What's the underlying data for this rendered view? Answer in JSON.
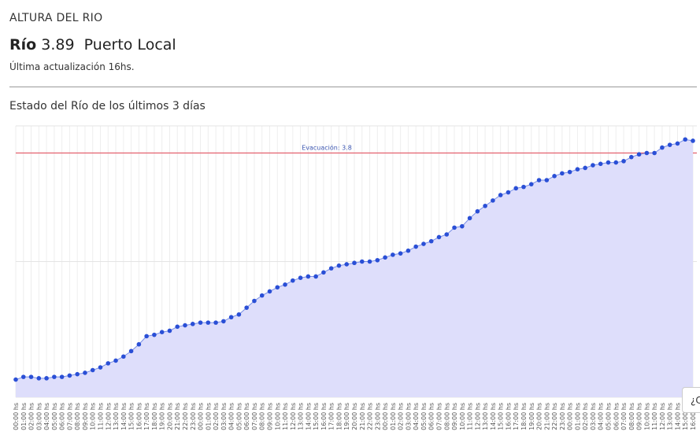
{
  "header": {
    "title": "ALTURA DEL RIO",
    "river_label": "Río",
    "river_value": "3.89",
    "location": "Puerto Local",
    "updated": "Última actualización 16hs."
  },
  "help_button": "¿C",
  "chart_data": {
    "type": "area",
    "title": "Estado del Río de los últimos 3 días",
    "categories": [
      "00:00 hs",
      "01:00 hs",
      "02:00 hs",
      "03:00 hs",
      "04:00 hs",
      "05:00 hs",
      "06:00 hs",
      "07:00 hs",
      "08:00 hs",
      "09:00 hs",
      "10:00 hs",
      "11:00 hs",
      "12:00 hs",
      "13:00 hs",
      "14:00 hs",
      "15:00 hs",
      "16:00 hs",
      "17:00 hs",
      "18:00 hs",
      "19:00 hs",
      "20:00 hs",
      "21:00 hs",
      "22:00 hs",
      "23:00 hs",
      "00:00 hs",
      "01:00 hs",
      "02:00 hs",
      "03:00 hs",
      "04:00 hs",
      "05:00 hs",
      "06:00 hs",
      "07:00 hs",
      "08:00 hs",
      "09:00 hs",
      "10:00 hs",
      "11:00 hs",
      "12:00 hs",
      "13:00 hs",
      "14:00 hs",
      "15:00 hs",
      "16:00 hs",
      "17:00 hs",
      "18:00 hs",
      "19:00 hs",
      "20:00 hs",
      "21:00 hs",
      "22:00 hs",
      "23:00 hs",
      "00:00 hs",
      "01:00 hs",
      "02:00 hs",
      "03:00 hs",
      "04:00 hs",
      "05:00 hs",
      "06:00 hs",
      "07:00 hs",
      "08:00 hs",
      "09:00 hs",
      "10:00 hs",
      "11:00 hs",
      "12:00 hs",
      "13:00 hs",
      "14:00 hs",
      "15:00 hs",
      "16:00 hs",
      "17:00 hs",
      "18:00 hs",
      "19:00 hs",
      "20:00 hs",
      "21:00 hs",
      "22:00 hs",
      "23:00 hs",
      "00:00 hs",
      "01:00 hs",
      "02:00 hs",
      "03:00 hs",
      "04:00 hs",
      "05:00 hs",
      "06:00 hs",
      "07:00 hs",
      "08:00 hs",
      "09:00 hs",
      "10:00 hs",
      "11:00 hs",
      "12:00 hs",
      "13:00 hs",
      "14:00 hs",
      "15:00 hs",
      "16:00 hs"
    ],
    "values": [
      2.13,
      2.15,
      2.15,
      2.14,
      2.14,
      2.15,
      2.15,
      2.16,
      2.17,
      2.18,
      2.2,
      2.22,
      2.25,
      2.27,
      2.3,
      2.34,
      2.39,
      2.45,
      2.46,
      2.48,
      2.49,
      2.52,
      2.53,
      2.54,
      2.55,
      2.55,
      2.55,
      2.56,
      2.59,
      2.61,
      2.66,
      2.71,
      2.75,
      2.78,
      2.81,
      2.83,
      2.86,
      2.88,
      2.89,
      2.89,
      2.92,
      2.95,
      2.97,
      2.98,
      2.99,
      3.0,
      3.0,
      3.01,
      3.03,
      3.05,
      3.06,
      3.08,
      3.11,
      3.13,
      3.15,
      3.18,
      3.2,
      3.25,
      3.26,
      3.32,
      3.37,
      3.41,
      3.45,
      3.49,
      3.51,
      3.54,
      3.55,
      3.57,
      3.6,
      3.6,
      3.63,
      3.65,
      3.66,
      3.68,
      3.69,
      3.71,
      3.72,
      3.73,
      3.73,
      3.74,
      3.77,
      3.79,
      3.8,
      3.8,
      3.84,
      3.86,
      3.87,
      3.9,
      3.89
    ],
    "color": "#2a4fd6",
    "fill": "#dedefb",
    "ylim": [
      2,
      4
    ],
    "yticks": [
      2,
      3,
      4
    ],
    "grid": true,
    "threshold": {
      "value": 3.8,
      "label": "Evacuación: 3.8",
      "color": "#e3606e"
    }
  }
}
